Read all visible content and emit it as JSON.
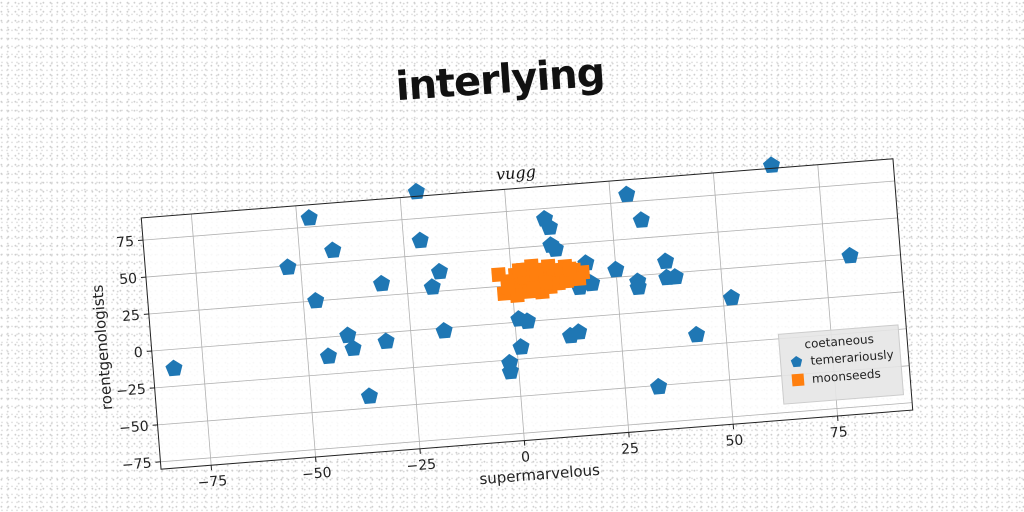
{
  "chart_data": {
    "type": "scatter",
    "suptitle": "interlying",
    "title": "vugg",
    "xlabel": "supermarvelous",
    "ylabel": "roentgenologists",
    "xlim": [
      -87,
      93
    ],
    "ylim": [
      -80,
      90
    ],
    "xticks": [
      -75,
      -50,
      -25,
      0,
      25,
      50,
      75
    ],
    "yticks": [
      -75,
      -50,
      -25,
      0,
      25,
      50,
      75
    ],
    "grid": true,
    "legend": {
      "title": "coetaneous",
      "placement": "lower right"
    },
    "series": [
      {
        "name": "temerariously",
        "color": "#1f77b4",
        "marker": "pentagon",
        "points": [
          [
            -21,
            93
          ],
          [
            -47,
            81
          ],
          [
            -42,
            58
          ],
          [
            -53,
            49
          ],
          [
            -21,
            60
          ],
          [
            -47,
            25
          ],
          [
            -31,
            33
          ],
          [
            -17,
            38
          ],
          [
            -19,
            28
          ],
          [
            -82,
            -13
          ],
          [
            -45,
            -13
          ],
          [
            -39,
            -9
          ],
          [
            -40,
            0
          ],
          [
            -31,
            -6
          ],
          [
            -17,
            -2
          ],
          [
            -36,
            -42
          ],
          [
            9,
            68
          ],
          [
            10,
            62
          ],
          [
            10,
            50
          ],
          [
            11,
            47
          ],
          [
            29,
            80
          ],
          [
            32,
            62
          ],
          [
            64,
            92
          ],
          [
            18,
            36
          ],
          [
            17,
            26
          ],
          [
            16,
            20
          ],
          [
            19,
            22
          ],
          [
            25,
            30
          ],
          [
            30,
            21
          ],
          [
            30,
            17
          ],
          [
            37,
            33
          ],
          [
            37,
            22
          ],
          [
            39,
            22
          ],
          [
            81,
            27
          ],
          [
            52,
            5
          ],
          [
            43,
            -18
          ],
          [
            -2,
            -27
          ],
          [
            -2,
            -33
          ],
          [
            1,
            2
          ],
          [
            3,
            0
          ],
          [
            1,
            -17
          ],
          [
            13,
            -12
          ],
          [
            15,
            -10
          ],
          [
            33,
            -51
          ]
        ]
      },
      {
        "name": "moonseeds",
        "color": "#ff7f0e",
        "marker": "square",
        "points": [
          [
            -3,
            33
          ],
          [
            -1,
            28
          ],
          [
            1,
            32
          ],
          [
            3,
            35
          ],
          [
            5,
            37
          ],
          [
            7,
            34
          ],
          [
            9,
            36
          ],
          [
            11,
            33
          ],
          [
            13,
            35
          ],
          [
            15,
            32
          ],
          [
            17,
            30
          ],
          [
            0,
            25
          ],
          [
            2,
            23
          ],
          [
            4,
            26
          ],
          [
            6,
            28
          ],
          [
            8,
            27
          ],
          [
            10,
            29
          ],
          [
            12,
            30
          ],
          [
            14,
            27
          ],
          [
            16,
            26
          ],
          [
            -2,
            20
          ],
          [
            1,
            18
          ],
          [
            4,
            20
          ],
          [
            7,
            19
          ],
          [
            9,
            22
          ],
          [
            11,
            24
          ],
          [
            13,
            25
          ],
          [
            3,
            30
          ],
          [
            6,
            31
          ],
          [
            8,
            25
          ],
          [
            5,
            22
          ],
          [
            -1,
            24
          ],
          [
            2,
            35
          ],
          [
            14,
            33
          ]
        ]
      }
    ]
  }
}
